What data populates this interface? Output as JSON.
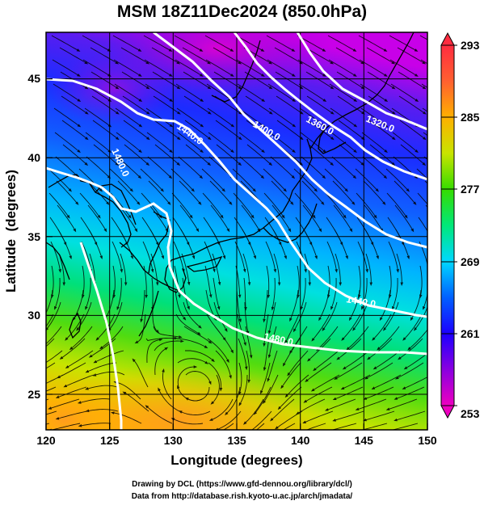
{
  "title": "MSM 18Z11Dec2024 (850.0hPa)",
  "x_axis": {
    "label": "Longitude (degrees)",
    "ticks": [
      "120",
      "125",
      "130",
      "135",
      "140",
      "145",
      "150"
    ],
    "range": [
      120,
      150
    ]
  },
  "y_axis": {
    "label": "Latitude  (degrees)",
    "ticks": [
      "25",
      "30",
      "35",
      "40",
      "45"
    ],
    "range": [
      22.4,
      47.6
    ]
  },
  "colorbar": {
    "ticks": [
      "253",
      "261",
      "269",
      "277",
      "285",
      "293"
    ],
    "range": [
      253,
      293
    ],
    "colors": [
      "#ee00c0",
      "#8a00e0",
      "#1c00ff",
      "#0060ff",
      "#00d8ff",
      "#00e87a",
      "#36dc00",
      "#c8e400",
      "#ffb000",
      "#ff6030",
      "#ff2c40"
    ]
  },
  "contours": [
    {
      "label": "1320.0"
    },
    {
      "label": "1360.0"
    },
    {
      "label": "1400.0"
    },
    {
      "label": "1440.0"
    },
    {
      "label": "1480.0"
    }
  ],
  "credits": [
    "Drawing by DCL (https://www.gfd-dennou.org/library/dcl/)",
    "Data from http://database.rish.kyoto-u.ac.jp/arch/jmadata/"
  ]
}
